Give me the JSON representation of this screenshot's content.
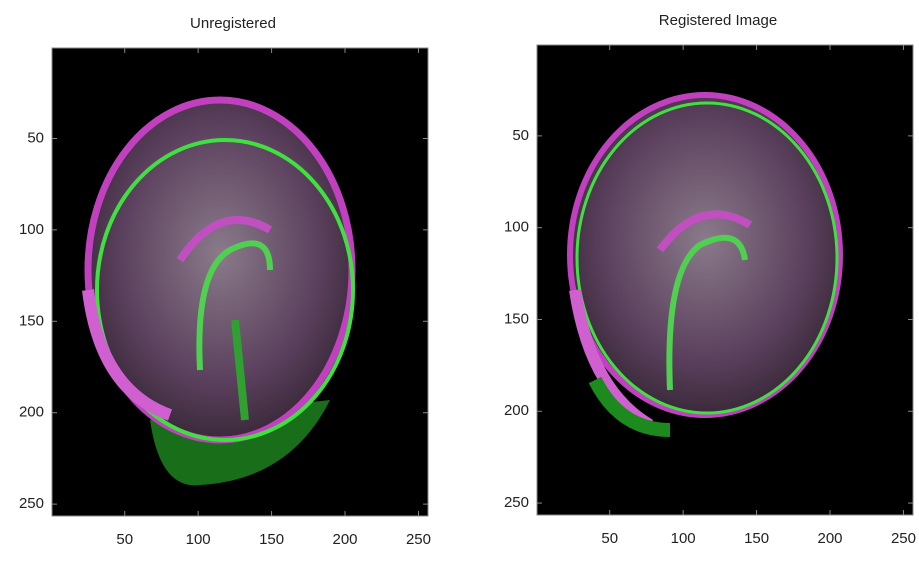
{
  "chart_data": [
    {
      "type": "image",
      "title": "Unregistered",
      "xlim": [
        0.5,
        256.5
      ],
      "ylim": [
        0.5,
        256.5
      ],
      "xticks": [
        50,
        100,
        150,
        200,
        250
      ],
      "yticks": [
        50,
        100,
        150,
        200,
        250
      ]
    },
    {
      "type": "image",
      "title": "Registered Image",
      "xlim": [
        0.5,
        256.5
      ],
      "ylim": [
        0.5,
        256.5
      ],
      "xticks": [
        50,
        100,
        150,
        200,
        250
      ],
      "yticks": [
        50,
        100,
        150,
        200,
        250
      ]
    }
  ]
}
